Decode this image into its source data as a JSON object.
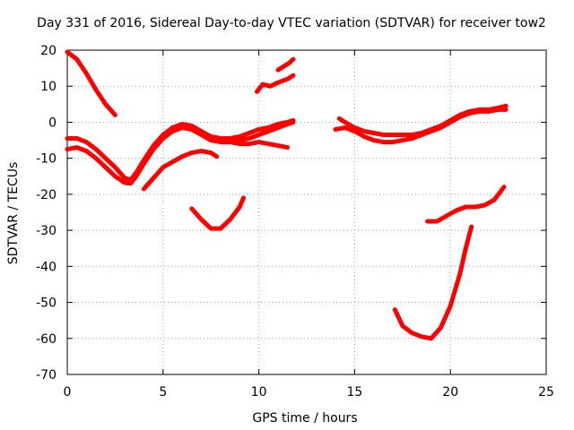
{
  "chart_data": {
    "type": "scatter",
    "title": "Day 331 of 2016, Sidereal Day-to-day VTEC variation (SDTVAR) for receiver tow2",
    "xlabel": "GPS time / hours",
    "ylabel": "SDTVAR / TECUs",
    "xlim": [
      0,
      25
    ],
    "ylim": [
      -70,
      20
    ],
    "xticks": [
      "0",
      "5",
      "10",
      "15",
      "20",
      "25"
    ],
    "yticks": [
      "20",
      "10",
      "0",
      "-10",
      "-20",
      "-30",
      "-40",
      "-50",
      "-60",
      "-70"
    ],
    "grid": true,
    "color": "#ff0000",
    "series": [
      {
        "name": "arc-1",
        "points": [
          [
            0,
            19.5
          ],
          [
            0.5,
            17.5
          ],
          [
            1.0,
            13.5
          ],
          [
            1.5,
            9.0
          ],
          [
            2.0,
            5.0
          ],
          [
            2.5,
            2.0
          ]
        ]
      },
      {
        "name": "arc-2",
        "points": [
          [
            0,
            -4.5
          ],
          [
            0.5,
            -4.5
          ],
          [
            1.0,
            -5.5
          ],
          [
            1.5,
            -7.5
          ],
          [
            2.0,
            -10.0
          ],
          [
            2.5,
            -12.5
          ],
          [
            3.0,
            -15.5
          ],
          [
            3.3,
            -16.0
          ],
          [
            3.6,
            -14.0
          ],
          [
            4.0,
            -10.5
          ],
          [
            4.5,
            -6.5
          ],
          [
            5.0,
            -3.5
          ],
          [
            5.5,
            -1.5
          ],
          [
            6.0,
            -0.5
          ],
          [
            6.5,
            -1.0
          ],
          [
            7.0,
            -2.5
          ],
          [
            7.5,
            -4.0
          ],
          [
            8.0,
            -4.5
          ],
          [
            8.5,
            -4.5
          ],
          [
            9.0,
            -4.0
          ],
          [
            9.5,
            -3.0
          ],
          [
            10.0,
            -2.0
          ],
          [
            10.5,
            -1.5
          ],
          [
            11.0,
            -0.5
          ],
          [
            11.5,
            0.0
          ],
          [
            11.8,
            0.5
          ]
        ]
      },
      {
        "name": "arc-3",
        "points": [
          [
            0,
            -7.5
          ],
          [
            0.5,
            -7.0
          ],
          [
            1.0,
            -8.0
          ],
          [
            1.5,
            -10.0
          ],
          [
            2.0,
            -12.5
          ],
          [
            2.5,
            -15.0
          ],
          [
            3.0,
            -16.8
          ],
          [
            3.3,
            -17.0
          ],
          [
            3.6,
            -15.0
          ],
          [
            4.0,
            -11.5
          ],
          [
            4.5,
            -7.5
          ],
          [
            5.0,
            -4.5
          ],
          [
            5.5,
            -2.5
          ],
          [
            6.0,
            -1.5
          ],
          [
            6.5,
            -2.0
          ],
          [
            7.0,
            -3.5
          ],
          [
            7.5,
            -5.0
          ],
          [
            8.0,
            -5.5
          ],
          [
            8.5,
            -5.5
          ],
          [
            9.0,
            -5.0
          ],
          [
            9.5,
            -4.5
          ],
          [
            10.0,
            -3.5
          ],
          [
            10.5,
            -2.5
          ],
          [
            11.0,
            -1.5
          ],
          [
            11.5,
            -0.5
          ],
          [
            11.8,
            0.0
          ]
        ]
      },
      {
        "name": "arc-4",
        "points": [
          [
            4.0,
            -18.5
          ],
          [
            4.5,
            -15.5
          ],
          [
            5.0,
            -12.5
          ],
          [
            5.5,
            -11.0
          ],
          [
            6.0,
            -9.5
          ],
          [
            6.5,
            -8.5
          ],
          [
            7.0,
            -8.0
          ],
          [
            7.5,
            -8.5
          ],
          [
            7.5,
            -8.5
          ],
          [
            7.8,
            -9.5
          ]
        ]
      },
      {
        "name": "arc-5",
        "points": [
          [
            8.0,
            -5.0
          ],
          [
            8.5,
            -5.5
          ],
          [
            9.0,
            -6.0
          ],
          [
            9.5,
            -6.0
          ],
          [
            10.0,
            -5.5
          ],
          [
            10.5,
            -6.0
          ],
          [
            11.0,
            -6.5
          ],
          [
            11.5,
            -7.0
          ]
        ]
      },
      {
        "name": "arc-6",
        "points": [
          [
            6.5,
            -24.0
          ],
          [
            7.0,
            -27.0
          ],
          [
            7.5,
            -29.5
          ],
          [
            8.0,
            -29.5
          ],
          [
            8.5,
            -27.0
          ],
          [
            9.0,
            -23.5
          ],
          [
            9.2,
            -21.0
          ]
        ]
      },
      {
        "name": "arc-7",
        "points": [
          [
            9.9,
            8.5
          ],
          [
            10.2,
            10.5
          ],
          [
            10.6,
            10.0
          ],
          [
            11.0,
            11.0
          ],
          [
            11.5,
            12.0
          ],
          [
            11.8,
            13.0
          ]
        ]
      },
      {
        "name": "arc-8",
        "points": [
          [
            11.0,
            14.5
          ],
          [
            11.3,
            15.5
          ],
          [
            11.6,
            16.5
          ],
          [
            11.8,
            17.5
          ]
        ]
      },
      {
        "name": "arc-9",
        "points": [
          [
            14.2,
            1.0
          ],
          [
            14.5,
            0.0
          ],
          [
            15.0,
            -1.5
          ],
          [
            15.5,
            -2.5
          ],
          [
            16.0,
            -3.0
          ],
          [
            16.5,
            -3.5
          ],
          [
            17.0,
            -3.5
          ],
          [
            17.5,
            -3.5
          ],
          [
            18.0,
            -3.5
          ],
          [
            18.5,
            -3.0
          ],
          [
            19.0,
            -2.0
          ],
          [
            19.5,
            -1.0
          ],
          [
            20.0,
            0.5
          ],
          [
            20.5,
            2.0
          ],
          [
            21.0,
            3.0
          ],
          [
            21.5,
            3.5
          ],
          [
            22.0,
            3.5
          ],
          [
            22.5,
            4.0
          ],
          [
            22.9,
            4.5
          ]
        ]
      },
      {
        "name": "arc-10",
        "points": [
          [
            14.0,
            -2.0
          ],
          [
            14.5,
            -1.5
          ],
          [
            15.0,
            -2.5
          ],
          [
            15.5,
            -4.0
          ],
          [
            16.0,
            -5.0
          ],
          [
            16.5,
            -5.5
          ],
          [
            17.0,
            -5.5
          ],
          [
            17.5,
            -5.0
          ],
          [
            18.0,
            -4.5
          ],
          [
            18.5,
            -3.5
          ],
          [
            19.0,
            -2.5
          ],
          [
            19.5,
            -1.5
          ],
          [
            20.0,
            0.0
          ],
          [
            20.5,
            1.5
          ],
          [
            21.0,
            2.5
          ],
          [
            21.5,
            3.0
          ],
          [
            22.0,
            3.0
          ],
          [
            22.5,
            3.5
          ],
          [
            22.9,
            3.5
          ]
        ]
      },
      {
        "name": "arc-11",
        "points": [
          [
            18.8,
            -27.5
          ],
          [
            19.3,
            -27.5
          ],
          [
            19.8,
            -26.0
          ],
          [
            20.3,
            -24.5
          ],
          [
            20.8,
            -23.5
          ],
          [
            21.3,
            -23.5
          ],
          [
            21.8,
            -23.0
          ],
          [
            22.3,
            -21.5
          ],
          [
            22.8,
            -18.0
          ]
        ]
      },
      {
        "name": "arc-12",
        "points": [
          [
            17.1,
            -52.0
          ],
          [
            17.5,
            -56.5
          ],
          [
            18.0,
            -58.5
          ],
          [
            18.5,
            -59.5
          ],
          [
            19.0,
            -60.0
          ],
          [
            19.5,
            -57.0
          ],
          [
            20.0,
            -51.0
          ],
          [
            20.5,
            -42.0
          ],
          [
            20.8,
            -35.0
          ],
          [
            21.1,
            -29.0
          ]
        ]
      }
    ]
  }
}
